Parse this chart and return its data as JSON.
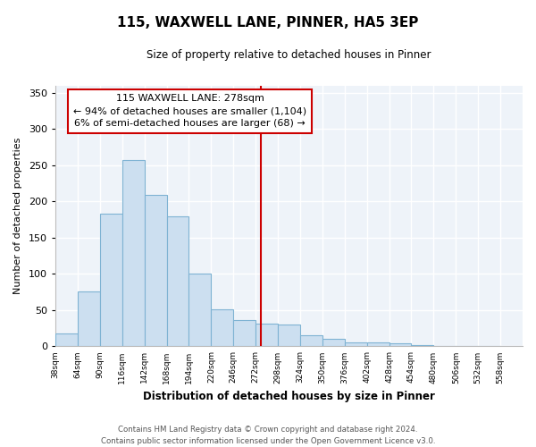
{
  "title": "115, WAXWELL LANE, PINNER, HA5 3EP",
  "subtitle": "Size of property relative to detached houses in Pinner",
  "xlabel": "Distribution of detached houses by size in Pinner",
  "ylabel": "Number of detached properties",
  "bar_edges": [
    38,
    64,
    90,
    116,
    142,
    168,
    194,
    220,
    246,
    272,
    298,
    324,
    350,
    376,
    402,
    428,
    454,
    480,
    506,
    532,
    558
  ],
  "bar_heights": [
    18,
    76,
    183,
    257,
    209,
    179,
    101,
    51,
    36,
    31,
    30,
    15,
    10,
    5,
    6,
    4,
    2,
    1,
    1,
    1
  ],
  "bar_color": "#ccdff0",
  "bar_edge_color": "#7fb3d3",
  "property_line_x": 278,
  "property_line_color": "#cc0000",
  "annotation_line1": "115 WAXWELL LANE: 278sqm",
  "annotation_line2": "← 94% of detached houses are smaller (1,104)",
  "annotation_line3": "6% of semi-detached houses are larger (68) →",
  "annotation_box_edge_color": "#cc0000",
  "annotation_box_facecolor": "#ffffff",
  "ylim": [
    0,
    360
  ],
  "yticks": [
    0,
    50,
    100,
    150,
    200,
    250,
    300,
    350
  ],
  "tick_labels": [
    "38sqm",
    "64sqm",
    "90sqm",
    "116sqm",
    "142sqm",
    "168sqm",
    "194sqm",
    "220sqm",
    "246sqm",
    "272sqm",
    "298sqm",
    "324sqm",
    "350sqm",
    "376sqm",
    "402sqm",
    "428sqm",
    "454sqm",
    "480sqm",
    "506sqm",
    "532sqm",
    "558sqm"
  ],
  "footer_text": "Contains HM Land Registry data © Crown copyright and database right 2024.\nContains public sector information licensed under the Open Government Licence v3.0.",
  "bg_color": "#ffffff",
  "plot_bg_color": "#eef3f9",
  "grid_color": "#ffffff"
}
